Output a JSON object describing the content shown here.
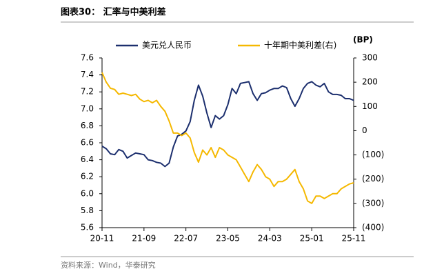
{
  "chart_data": {
    "type": "line",
    "title": "图表30：  汇率与中美利差",
    "source": "资料来源：Wind，华泰研究",
    "y2_label": "(BP)",
    "x": [
      "20-11",
      "20-12",
      "21-01",
      "21-02",
      "21-03",
      "21-04",
      "21-05",
      "21-06",
      "21-07",
      "21-08",
      "21-09",
      "21-10",
      "21-11",
      "21-12",
      "22-01",
      "22-02",
      "22-03",
      "22-04",
      "22-05",
      "22-06",
      "22-07",
      "22-08",
      "22-09",
      "22-10",
      "22-11",
      "22-12",
      "23-01",
      "23-02",
      "23-03",
      "23-04",
      "23-05",
      "23-06",
      "23-07",
      "23-08",
      "23-09",
      "23-10",
      "23-11",
      "23-12",
      "24-01",
      "24-02",
      "24-03",
      "24-04",
      "24-05",
      "24-06",
      "24-07",
      "24-08",
      "24-09",
      "24-10",
      "24-11",
      "24-12",
      "25-01",
      "25-02",
      "25-03",
      "25-04",
      "25-05",
      "25-06",
      "25-07",
      "25-08",
      "25-09",
      "25-10",
      "25-11"
    ],
    "xticks": [
      "20-11",
      "21-09",
      "22-07",
      "23-05",
      "24-03",
      "25-01",
      "25-11"
    ],
    "series": [
      {
        "name": "美元兑人民币",
        "color": "#1c2f6e",
        "axis": "y",
        "values": [
          6.56,
          6.53,
          6.47,
          6.46,
          6.52,
          6.5,
          6.42,
          6.45,
          6.48,
          6.47,
          6.46,
          6.4,
          6.39,
          6.37,
          6.36,
          6.32,
          6.36,
          6.55,
          6.68,
          6.7,
          6.74,
          6.85,
          7.1,
          7.28,
          7.15,
          6.95,
          6.78,
          6.92,
          6.88,
          6.92,
          7.05,
          7.24,
          7.18,
          7.3,
          7.31,
          7.32,
          7.18,
          7.1,
          7.18,
          7.19,
          7.22,
          7.24,
          7.24,
          7.27,
          7.25,
          7.12,
          7.03,
          7.12,
          7.24,
          7.3,
          7.32,
          7.28,
          7.26,
          7.3,
          7.2,
          7.17,
          7.17,
          7.16,
          7.12,
          7.12,
          7.1
        ]
      },
      {
        "name": "十年期中美利差(右)",
        "color": "#f5b800",
        "axis": "y2",
        "values": [
          240,
          200,
          175,
          170,
          150,
          155,
          150,
          145,
          150,
          130,
          120,
          125,
          115,
          125,
          100,
          80,
          40,
          -10,
          -10,
          -20,
          -10,
          -30,
          -90,
          -130,
          -80,
          -100,
          -70,
          -110,
          -70,
          -80,
          -100,
          -110,
          -120,
          -150,
          -180,
          -210,
          -170,
          -140,
          -160,
          -190,
          -200,
          -230,
          -210,
          -210,
          -200,
          -180,
          -160,
          -210,
          -240,
          -290,
          -300,
          -270,
          -270,
          -280,
          -270,
          -260,
          -260,
          -240,
          -230,
          -220,
          -215
        ]
      }
    ],
    "ylim": [
      5.6,
      7.6
    ],
    "yticks": [
      7.6,
      7.4,
      7.2,
      {
        "value": 7,
        "label": "7.0"
      },
      6.8,
      6.6,
      6.4,
      6.2,
      {
        "value": 6,
        "label": "6.0"
      },
      5.8,
      5.6
    ],
    "y2lim": [
      -400,
      300
    ],
    "y2ticks": [
      300,
      200,
      100,
      0,
      {
        "value": -100,
        "label": "(100)"
      },
      {
        "value": -200,
        "label": "(200)"
      },
      {
        "value": -300,
        "label": "(300)"
      },
      {
        "value": -400,
        "label": "(400)"
      }
    ],
    "legend": "top"
  }
}
